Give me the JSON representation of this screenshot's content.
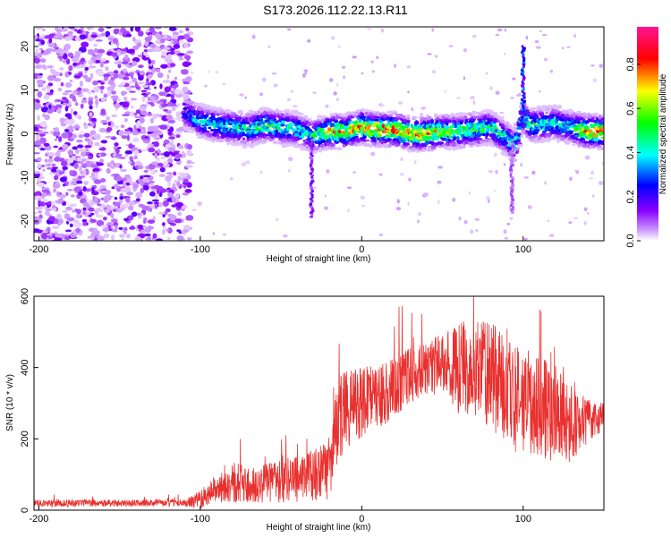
{
  "title": "S173.2026.112.22.13.R11",
  "chart_data": [
    {
      "type": "heatmap",
      "xlabel": "Height of straight line (km)",
      "ylabel": "Frequency (Hz)",
      "xlim": [
        -203,
        150
      ],
      "ylim": [
        -24.5,
        24.5
      ],
      "x_ticks": [
        -200,
        -100,
        0,
        100
      ],
      "y_ticks": [
        -20,
        -10,
        0,
        10,
        20
      ],
      "colorbar": {
        "label": "Normalized spectral amplitude",
        "range": [
          0,
          0.97
        ],
        "ticks": [
          0.0,
          0.2,
          0.4,
          0.6,
          0.8
        ]
      },
      "ridge": {
        "x": [
          -110,
          -100,
          -90,
          -80,
          -70,
          -60,
          -50,
          -40,
          -30,
          -20,
          -10,
          0,
          10,
          20,
          30,
          40,
          50,
          60,
          70,
          80,
          90,
          95,
          100,
          105,
          110,
          120,
          130,
          140,
          150
        ],
        "frequency_hz": [
          5,
          3,
          2,
          1.5,
          1,
          2,
          1.5,
          1,
          -0.5,
          0.5,
          0.5,
          1.5,
          1,
          1,
          0,
          0,
          0.5,
          0.5,
          1,
          1.5,
          -1,
          -3,
          4,
          2,
          2,
          2.5,
          1.5,
          0.5,
          0.5
        ],
        "amplitude": [
          0.3,
          0.45,
          0.5,
          0.5,
          0.5,
          0.6,
          0.55,
          0.5,
          0.5,
          0.8,
          0.85,
          0.9,
          0.9,
          0.95,
          0.85,
          0.9,
          0.7,
          0.6,
          0.6,
          0.55,
          0.5,
          0.5,
          0.6,
          0.55,
          0.5,
          0.5,
          0.45,
          0.9,
          0.9
        ]
      },
      "noise_region_x": [
        -203,
        -110
      ]
    },
    {
      "type": "line",
      "xlabel": "Height of straight line (km)",
      "ylabel": "SNR (10 * v/v)",
      "xlim": [
        -203,
        150
      ],
      "ylim": [
        0,
        600
      ],
      "x_ticks": [
        -200,
        -100,
        0,
        100
      ],
      "y_ticks": [
        0,
        200,
        400,
        600
      ],
      "series": [
        {
          "name": "SNR",
          "color": "#e8302e",
          "x": [
            -203,
            -190,
            -170,
            -150,
            -130,
            -110,
            -100,
            -90,
            -80,
            -70,
            -60,
            -50,
            -40,
            -30,
            -20,
            -15,
            -10,
            0,
            10,
            20,
            30,
            40,
            50,
            60,
            70,
            80,
            90,
            100,
            110,
            120,
            130,
            140,
            150
          ],
          "y": [
            20,
            18,
            20,
            19,
            20,
            20,
            30,
            60,
            80,
            70,
            75,
            80,
            90,
            100,
            110,
            250,
            280,
            300,
            320,
            340,
            380,
            400,
            410,
            400,
            390,
            380,
            330,
            310,
            290,
            280,
            240,
            250,
            260
          ],
          "spread": [
            10,
            10,
            10,
            10,
            10,
            10,
            25,
            40,
            60,
            50,
            55,
            60,
            70,
            75,
            80,
            130,
            110,
            100,
            90,
            85,
            80,
            75,
            90,
            130,
            140,
            150,
            160,
            160,
            150,
            140,
            110,
            60,
            40
          ]
        }
      ]
    }
  ]
}
